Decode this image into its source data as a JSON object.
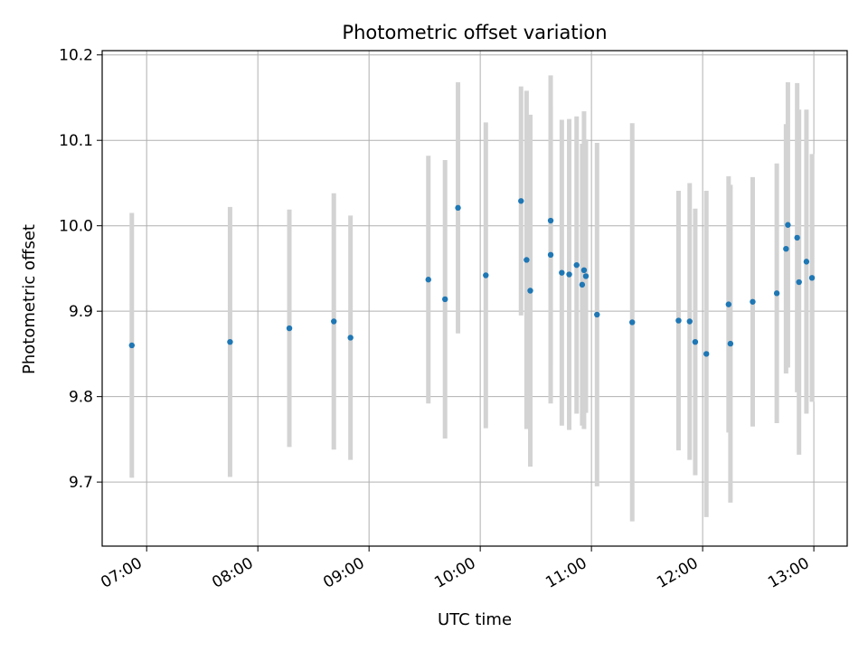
{
  "chart_data": {
    "type": "scatter",
    "title": "Photometric offset variation",
    "xlabel": "UTC time",
    "ylabel": "Photometric offset",
    "x_axis_type": "time",
    "xlim": [
      "06:36",
      "13:18"
    ],
    "ylim": [
      9.625,
      10.205
    ],
    "x_ticks": [
      "07:00",
      "08:00",
      "09:00",
      "10:00",
      "11:00",
      "12:00",
      "13:00"
    ],
    "y_ticks": [
      "9.7",
      "9.8",
      "9.9",
      "10.0",
      "10.1",
      "10.2"
    ],
    "grid": true,
    "point_color": "#1f77b4",
    "errorbar_color": "#d3d3d3",
    "points": [
      {
        "x": "06:52",
        "y": 9.86,
        "err": 0.155
      },
      {
        "x": "07:45",
        "y": 9.864,
        "err": 0.158
      },
      {
        "x": "08:17",
        "y": 9.88,
        "err": 0.139
      },
      {
        "x": "08:41",
        "y": 9.888,
        "err": 0.15
      },
      {
        "x": "08:50",
        "y": 9.869,
        "err": 0.143
      },
      {
        "x": "09:32",
        "y": 9.937,
        "err": 0.145
      },
      {
        "x": "09:41",
        "y": 9.914,
        "err": 0.163
      },
      {
        "x": "09:48",
        "y": 10.021,
        "err": 0.147
      },
      {
        "x": "10:03",
        "y": 9.942,
        "err": 0.179
      },
      {
        "x": "10:22",
        "y": 10.029,
        "err": 0.134
      },
      {
        "x": "10:25",
        "y": 9.96,
        "err": 0.198
      },
      {
        "x": "10:27",
        "y": 9.924,
        "err": 0.206
      },
      {
        "x": "10:38",
        "y": 10.006,
        "err": 0.17
      },
      {
        "x": "10:38",
        "y": 9.966,
        "err": 0.174
      },
      {
        "x": "10:44",
        "y": 9.945,
        "err": 0.179
      },
      {
        "x": "10:48",
        "y": 9.943,
        "err": 0.182
      },
      {
        "x": "10:52",
        "y": 9.954,
        "err": 0.174
      },
      {
        "x": "10:55",
        "y": 9.931,
        "err": 0.165
      },
      {
        "x": "10:56",
        "y": 9.948,
        "err": 0.186
      },
      {
        "x": "10:57",
        "y": 9.941,
        "err": 0.16
      },
      {
        "x": "11:03",
        "y": 9.896,
        "err": 0.201
      },
      {
        "x": "11:22",
        "y": 9.887,
        "err": 0.233
      },
      {
        "x": "11:47",
        "y": 9.889,
        "err": 0.152
      },
      {
        "x": "11:53",
        "y": 9.888,
        "err": 0.162
      },
      {
        "x": "11:56",
        "y": 9.864,
        "err": 0.156
      },
      {
        "x": "12:02",
        "y": 9.85,
        "err": 0.191
      },
      {
        "x": "12:14",
        "y": 9.908,
        "err": 0.15
      },
      {
        "x": "12:15",
        "y": 9.862,
        "err": 0.186
      },
      {
        "x": "12:27",
        "y": 9.911,
        "err": 0.146
      },
      {
        "x": "12:40",
        "y": 9.921,
        "err": 0.152
      },
      {
        "x": "12:45",
        "y": 9.973,
        "err": 0.146
      },
      {
        "x": "12:46",
        "y": 10.001,
        "err": 0.167
      },
      {
        "x": "12:51",
        "y": 9.986,
        "err": 0.181
      },
      {
        "x": "12:52",
        "y": 9.934,
        "err": 0.202
      },
      {
        "x": "12:56",
        "y": 9.958,
        "err": 0.178
      },
      {
        "x": "12:59",
        "y": 9.939,
        "err": 0.145
      }
    ]
  }
}
